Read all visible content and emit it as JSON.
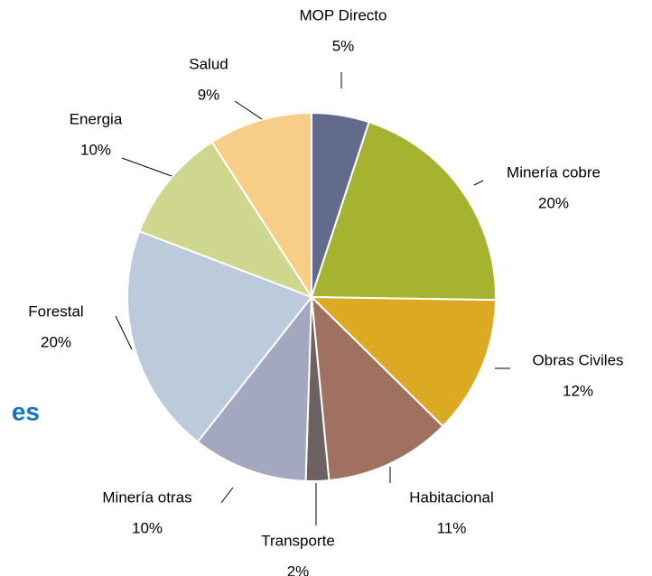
{
  "chart_data": {
    "type": "pie",
    "annotations": [
      "es"
    ],
    "categories": [
      "MOP Directo",
      "Minería cobre",
      "Obras Civiles",
      "Habitacional",
      "Transporte",
      "Minería otras",
      "Forestal",
      "Energia",
      "Salud"
    ],
    "values": [
      5,
      20,
      12,
      11,
      2,
      10,
      20,
      10,
      9
    ],
    "value_labels": [
      "5%",
      "20%",
      "12%",
      "11%",
      "2%",
      "10%",
      "20%",
      "10%",
      "9%"
    ],
    "colors": [
      "#636b8c",
      "#a5b331",
      "#dcaa22",
      "#a07060",
      "#6e6161",
      "#a3a7bf",
      "#bccbdb",
      "#cfd68e",
      "#f7cd87"
    ]
  }
}
